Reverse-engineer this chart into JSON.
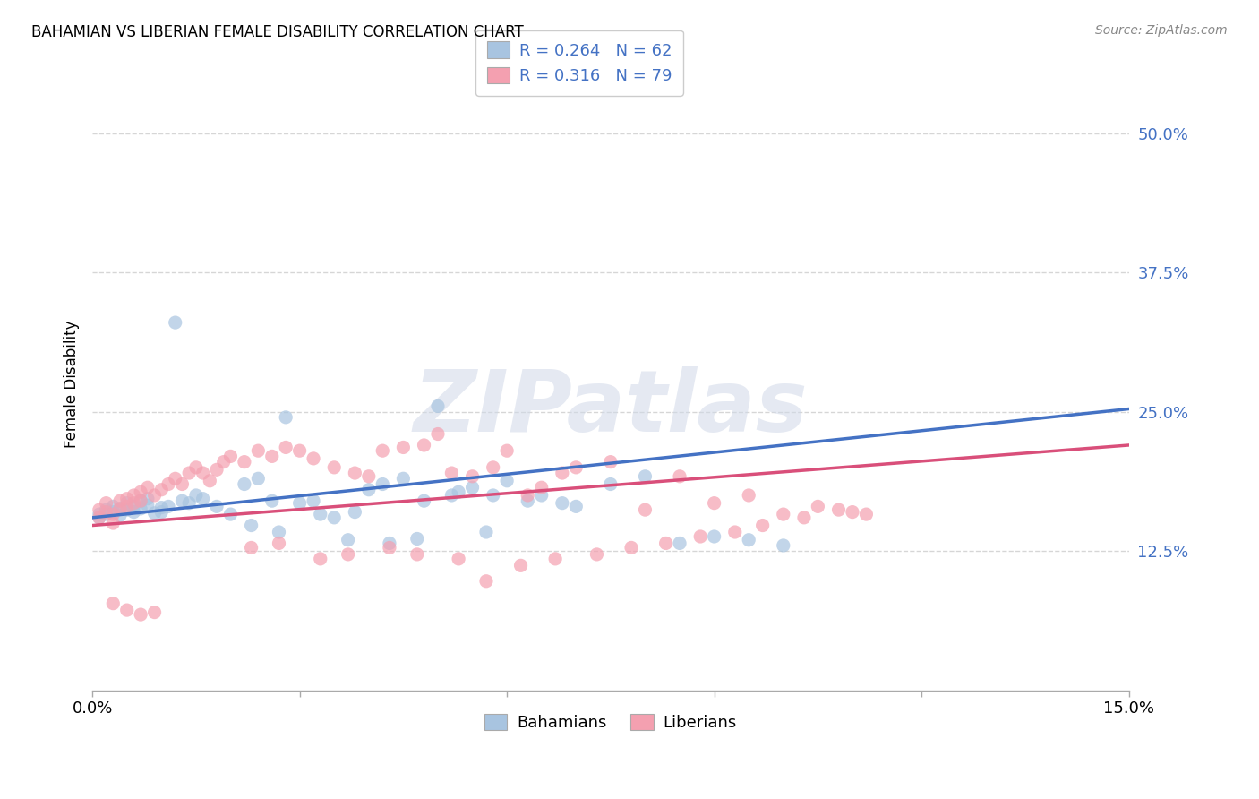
{
  "title": "BAHAMIAN VS LIBERIAN FEMALE DISABILITY CORRELATION CHART",
  "source": "Source: ZipAtlas.com",
  "ylabel": "Female Disability",
  "xlim": [
    0.0,
    0.15
  ],
  "ylim": [
    0.0,
    0.55
  ],
  "yticks": [
    0.125,
    0.25,
    0.375,
    0.5
  ],
  "ytick_labels": [
    "12.5%",
    "25.0%",
    "37.5%",
    "50.0%"
  ],
  "xticks": [
    0.0,
    0.03,
    0.06,
    0.09,
    0.12,
    0.15
  ],
  "xtick_labels": [
    "0.0%",
    "",
    "",
    "",
    "",
    "15.0%"
  ],
  "bahamian_color": "#a8c4e0",
  "liberian_color": "#f4a0b0",
  "bahamian_line_color": "#4472c4",
  "liberian_line_color": "#d94f7a",
  "R_bahamian": 0.264,
  "N_bahamian": 62,
  "R_liberian": 0.316,
  "N_liberian": 79,
  "watermark": "ZIPatlas",
  "bah_intercept": 0.155,
  "bah_slope": 0.65,
  "lib_intercept": 0.148,
  "lib_slope": 0.48,
  "bahamian_x": [
    0.001,
    0.001,
    0.002,
    0.002,
    0.003,
    0.003,
    0.004,
    0.004,
    0.005,
    0.005,
    0.006,
    0.006,
    0.007,
    0.007,
    0.008,
    0.008,
    0.009,
    0.01,
    0.01,
    0.011,
    0.012,
    0.013,
    0.014,
    0.015,
    0.016,
    0.018,
    0.02,
    0.022,
    0.024,
    0.026,
    0.028,
    0.03,
    0.032,
    0.035,
    0.038,
    0.04,
    0.042,
    0.045,
    0.048,
    0.05,
    0.052,
    0.055,
    0.058,
    0.06,
    0.063,
    0.065,
    0.068,
    0.07,
    0.075,
    0.08,
    0.085,
    0.09,
    0.095,
    0.1,
    0.023,
    0.027,
    0.033,
    0.037,
    0.043,
    0.047,
    0.053,
    0.057
  ],
  "bahamian_y": [
    0.158,
    0.155,
    0.162,
    0.158,
    0.165,
    0.16,
    0.163,
    0.157,
    0.168,
    0.162,
    0.165,
    0.16,
    0.17,
    0.163,
    0.172,
    0.166,
    0.159,
    0.164,
    0.16,
    0.165,
    0.33,
    0.17,
    0.168,
    0.175,
    0.172,
    0.165,
    0.158,
    0.185,
    0.19,
    0.17,
    0.245,
    0.168,
    0.17,
    0.155,
    0.16,
    0.18,
    0.185,
    0.19,
    0.17,
    0.255,
    0.175,
    0.182,
    0.175,
    0.188,
    0.17,
    0.175,
    0.168,
    0.165,
    0.185,
    0.192,
    0.132,
    0.138,
    0.135,
    0.13,
    0.148,
    0.142,
    0.158,
    0.135,
    0.132,
    0.136,
    0.178,
    0.142
  ],
  "liberian_x": [
    0.001,
    0.001,
    0.002,
    0.002,
    0.003,
    0.003,
    0.004,
    0.004,
    0.005,
    0.005,
    0.006,
    0.006,
    0.007,
    0.007,
    0.008,
    0.009,
    0.01,
    0.011,
    0.012,
    0.013,
    0.014,
    0.015,
    0.016,
    0.017,
    0.018,
    0.019,
    0.02,
    0.022,
    0.024,
    0.026,
    0.028,
    0.03,
    0.032,
    0.035,
    0.038,
    0.04,
    0.042,
    0.045,
    0.048,
    0.05,
    0.052,
    0.055,
    0.058,
    0.06,
    0.063,
    0.065,
    0.068,
    0.07,
    0.075,
    0.08,
    0.085,
    0.09,
    0.095,
    0.1,
    0.105,
    0.11,
    0.023,
    0.027,
    0.033,
    0.037,
    0.043,
    0.047,
    0.053,
    0.057,
    0.062,
    0.067,
    0.073,
    0.078,
    0.083,
    0.088,
    0.093,
    0.097,
    0.103,
    0.108,
    0.112,
    0.003,
    0.005,
    0.007,
    0.009
  ],
  "liberian_y": [
    0.162,
    0.155,
    0.168,
    0.16,
    0.158,
    0.15,
    0.17,
    0.163,
    0.172,
    0.165,
    0.175,
    0.168,
    0.178,
    0.17,
    0.182,
    0.175,
    0.18,
    0.185,
    0.19,
    0.185,
    0.195,
    0.2,
    0.195,
    0.188,
    0.198,
    0.205,
    0.21,
    0.205,
    0.215,
    0.21,
    0.218,
    0.215,
    0.208,
    0.2,
    0.195,
    0.192,
    0.215,
    0.218,
    0.22,
    0.23,
    0.195,
    0.192,
    0.2,
    0.215,
    0.175,
    0.182,
    0.195,
    0.2,
    0.205,
    0.162,
    0.192,
    0.168,
    0.175,
    0.158,
    0.165,
    0.16,
    0.128,
    0.132,
    0.118,
    0.122,
    0.128,
    0.122,
    0.118,
    0.098,
    0.112,
    0.118,
    0.122,
    0.128,
    0.132,
    0.138,
    0.142,
    0.148,
    0.155,
    0.162,
    0.158,
    0.078,
    0.072,
    0.068,
    0.07
  ]
}
